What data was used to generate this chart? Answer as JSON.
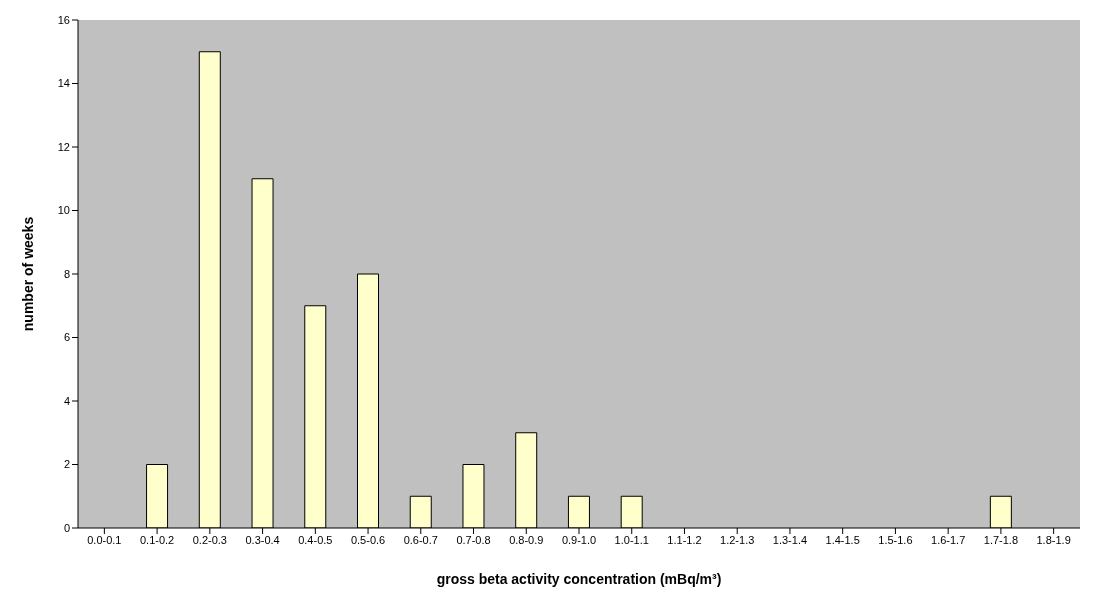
{
  "chart_data": {
    "type": "bar",
    "xlabel": "gross beta activity concentration (mBq/m³)",
    "ylabel": "number of weeks",
    "categories": [
      "0.0-0.1",
      "0.1-0.2",
      "0.2-0.3",
      "0.3-0.4",
      "0.4-0.5",
      "0.5-0.6",
      "0.6-0.7",
      "0.7-0.8",
      "0.8-0.9",
      "0.9-1.0",
      "1.0-1.1",
      "1.1-1.2",
      "1.2-1.3",
      "1.3-1.4",
      "1.4-1.5",
      "1.5-1.6",
      "1.6-1.7",
      "1.7-1.8",
      "1.8-1.9"
    ],
    "values": [
      0,
      2,
      15,
      11,
      7,
      8,
      1,
      2,
      3,
      1,
      1,
      0,
      0,
      0,
      0,
      0,
      0,
      1,
      0
    ],
    "color": "#ffffcc",
    "ylim": [
      0,
      16
    ],
    "yticks": [
      0,
      2,
      4,
      6,
      8,
      10,
      12,
      14,
      16
    ],
    "grid": false
  }
}
